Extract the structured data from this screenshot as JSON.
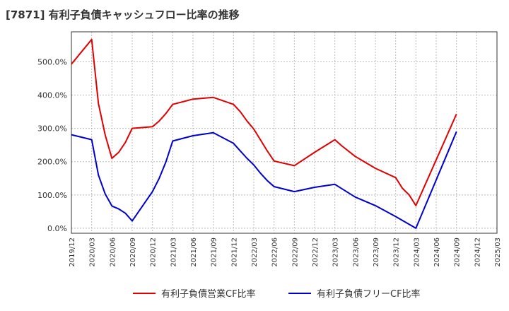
{
  "chart_data": {
    "type": "line",
    "title": "[7871]  有利子負債キャッシュフロー比率の推移",
    "xlabel": "",
    "ylabel": "",
    "grid": true,
    "legend_position": "bottom",
    "x_ticks": [
      "2019/12",
      "2020/03",
      "2020/06",
      "2020/09",
      "2020/12",
      "2021/03",
      "2021/06",
      "2021/09",
      "2021/12",
      "2022/03",
      "2022/06",
      "2022/09",
      "2022/12",
      "2023/03",
      "2023/06",
      "2023/09",
      "2023/12",
      "2024/03",
      "2024/06",
      "2024/09",
      "2024/12",
      "2025/03"
    ],
    "y_ticks": [
      0,
      100,
      200,
      300,
      400,
      500
    ],
    "y_tick_labels": [
      "0.0%",
      "100.0%",
      "200.0%",
      "300.0%",
      "400.0%",
      "500.0%"
    ],
    "ylim": [
      -15,
      590
    ],
    "series": [
      {
        "name": "有利子負債営業CF比率",
        "color": "#e00000",
        "points": [
          {
            "x": "2019/12",
            "y": 493
          },
          {
            "x": "2020/03",
            "y": 567
          },
          {
            "x": "2020/04",
            "y": 375
          },
          {
            "x": "2020/05",
            "y": 280
          },
          {
            "x": "2020/06",
            "y": 210
          },
          {
            "x": "2020/07",
            "y": 228
          },
          {
            "x": "2020/08",
            "y": 258
          },
          {
            "x": "2020/09",
            "y": 300
          },
          {
            "x": "2020/12",
            "y": 305
          },
          {
            "x": "2021/01",
            "y": 322
          },
          {
            "x": "2021/02",
            "y": 345
          },
          {
            "x": "2021/03",
            "y": 372
          },
          {
            "x": "2021/06",
            "y": 388
          },
          {
            "x": "2021/09",
            "y": 393
          },
          {
            "x": "2021/12",
            "y": 372
          },
          {
            "x": "2022/01",
            "y": 350
          },
          {
            "x": "2022/02",
            "y": 322
          },
          {
            "x": "2022/03",
            "y": 298
          },
          {
            "x": "2022/04",
            "y": 265
          },
          {
            "x": "2022/05",
            "y": 232
          },
          {
            "x": "2022/06",
            "y": 202
          },
          {
            "x": "2022/09",
            "y": 188
          },
          {
            "x": "2022/12",
            "y": 228
          },
          {
            "x": "2023/03",
            "y": 266
          },
          {
            "x": "2023/04",
            "y": 248
          },
          {
            "x": "2023/06",
            "y": 216
          },
          {
            "x": "2023/09",
            "y": 180
          },
          {
            "x": "2023/12",
            "y": 152
          },
          {
            "x": "2024/01",
            "y": 120
          },
          {
            "x": "2024/02",
            "y": 100
          },
          {
            "x": "2024/03",
            "y": 68
          },
          {
            "x": "2024/09",
            "y": 343
          }
        ]
      },
      {
        "name": "有利子負債フリーCF比率",
        "color": "#0000cc",
        "points": [
          {
            "x": "2019/12",
            "y": 281
          },
          {
            "x": "2020/03",
            "y": 266
          },
          {
            "x": "2020/04",
            "y": 160
          },
          {
            "x": "2020/05",
            "y": 103
          },
          {
            "x": "2020/06",
            "y": 67
          },
          {
            "x": "2020/07",
            "y": 58
          },
          {
            "x": "2020/08",
            "y": 45
          },
          {
            "x": "2020/09",
            "y": 22
          },
          {
            "x": "2020/12",
            "y": 110
          },
          {
            "x": "2021/01",
            "y": 150
          },
          {
            "x": "2021/02",
            "y": 200
          },
          {
            "x": "2021/03",
            "y": 262
          },
          {
            "x": "2021/06",
            "y": 278
          },
          {
            "x": "2021/09",
            "y": 287
          },
          {
            "x": "2021/12",
            "y": 255
          },
          {
            "x": "2022/01",
            "y": 232
          },
          {
            "x": "2022/02",
            "y": 210
          },
          {
            "x": "2022/03",
            "y": 190
          },
          {
            "x": "2022/04",
            "y": 165
          },
          {
            "x": "2022/05",
            "y": 143
          },
          {
            "x": "2022/06",
            "y": 125
          },
          {
            "x": "2022/09",
            "y": 110
          },
          {
            "x": "2022/12",
            "y": 123
          },
          {
            "x": "2023/03",
            "y": 132
          },
          {
            "x": "2023/06",
            "y": 94
          },
          {
            "x": "2023/09",
            "y": 68
          },
          {
            "x": "2023/12",
            "y": 35
          },
          {
            "x": "2024/03",
            "y": 0
          },
          {
            "x": "2024/09",
            "y": 290
          }
        ]
      }
    ]
  }
}
